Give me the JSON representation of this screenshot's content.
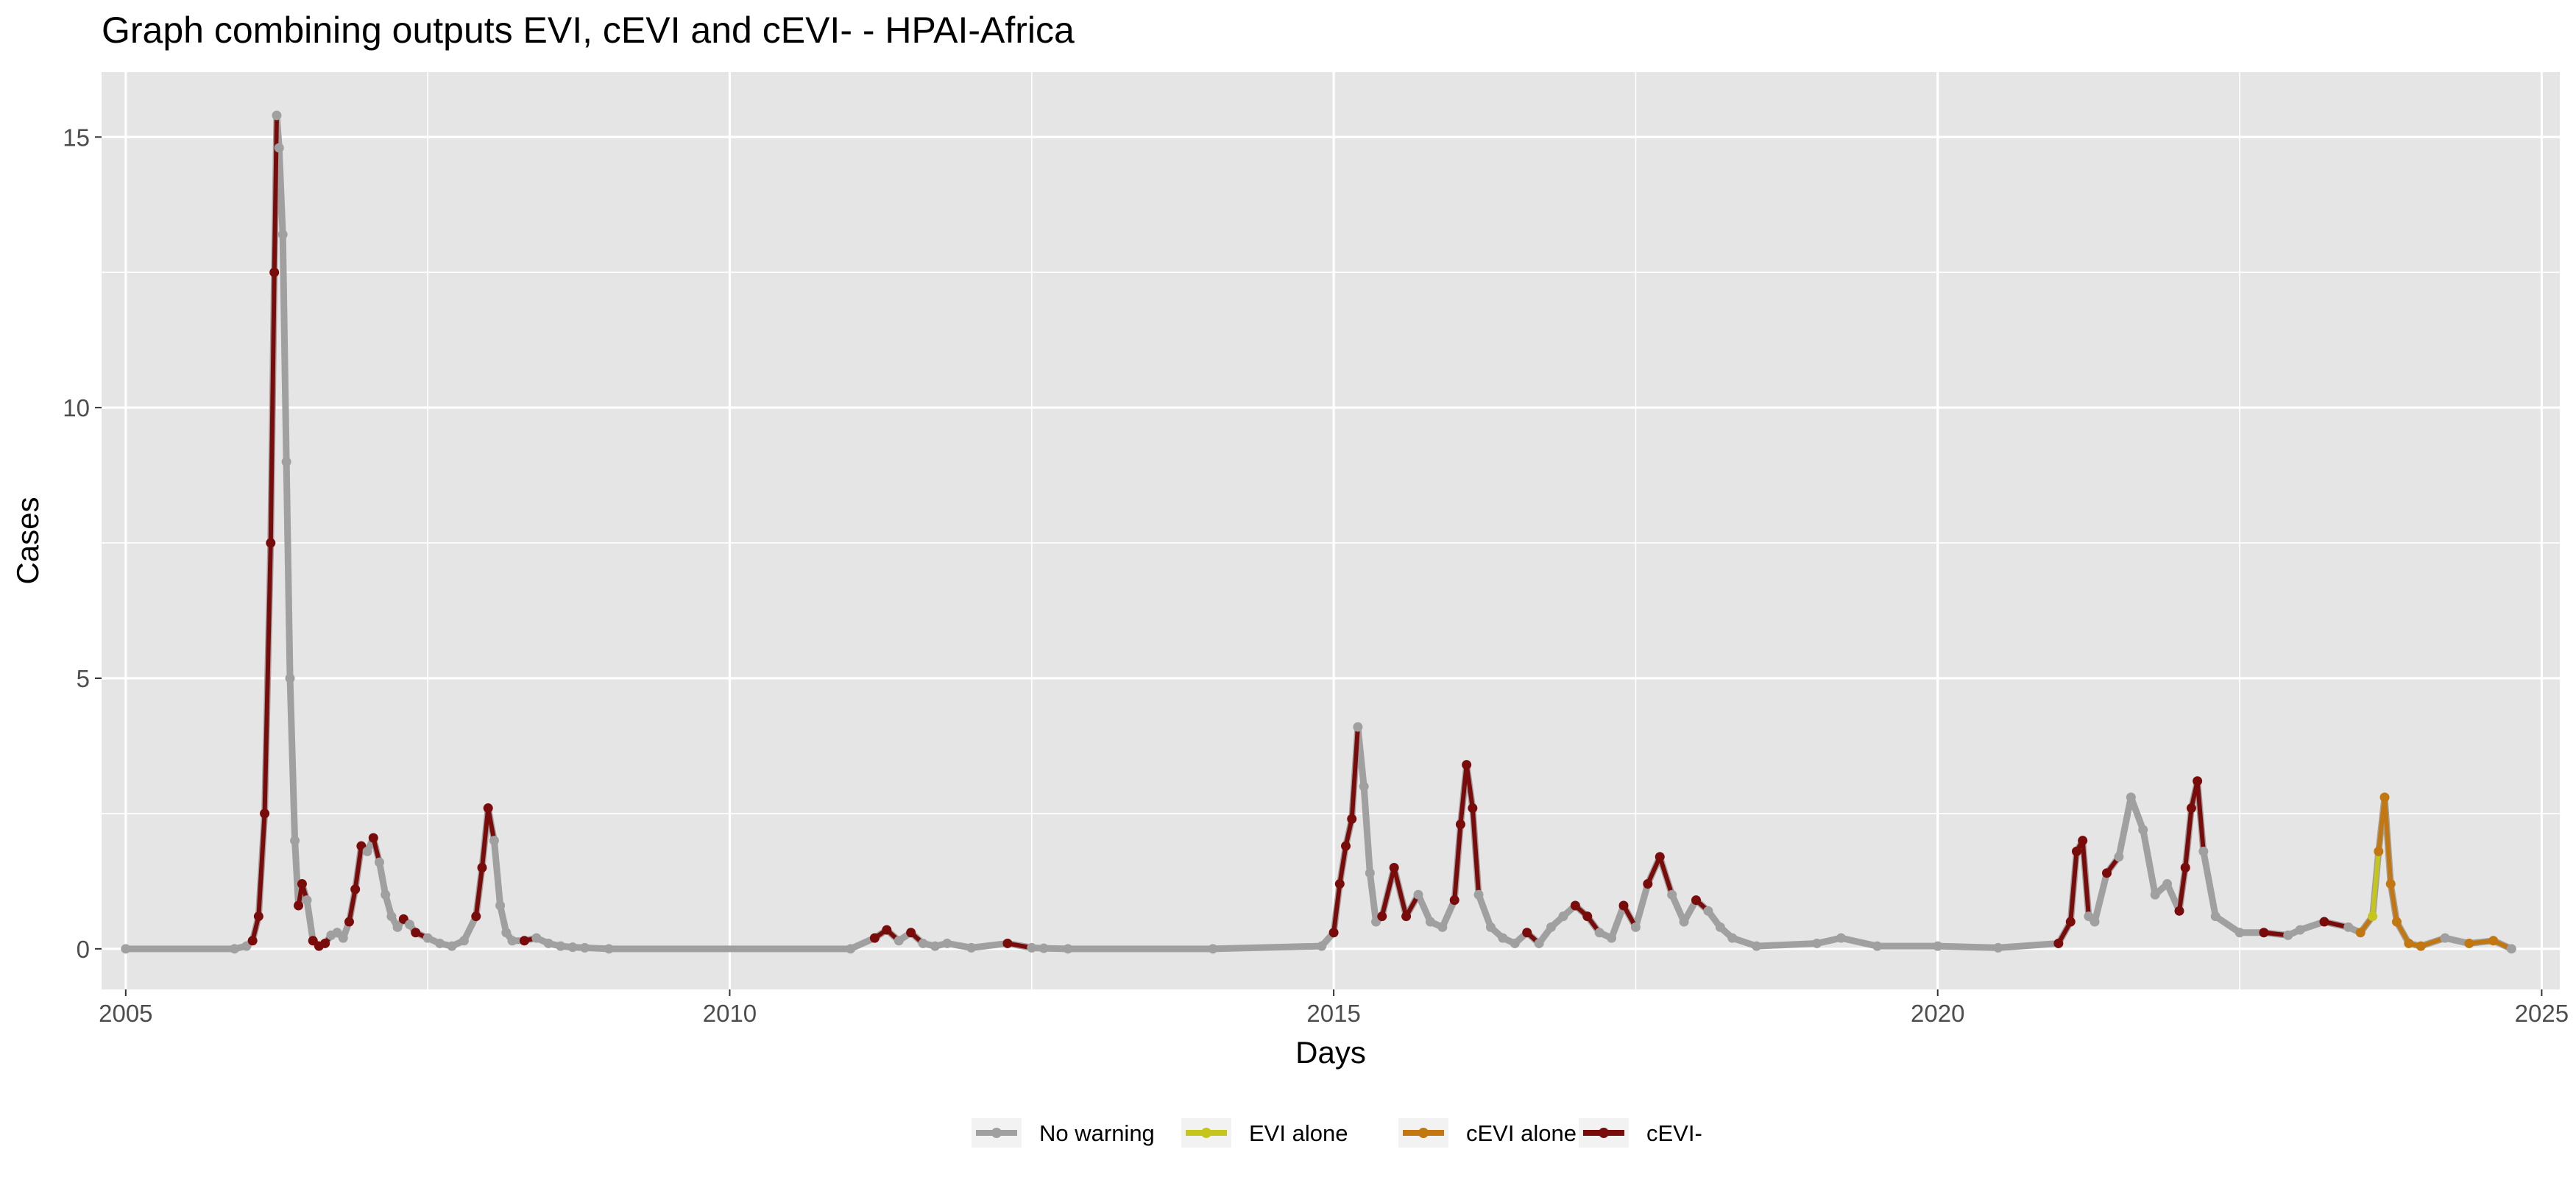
{
  "chart_data": {
    "type": "line",
    "title": "Graph combining outputs EVI, cEVI and cEVI- - HPAI-Africa",
    "xlabel": "Days",
    "ylabel": "Cases",
    "xlim": [
      2004.8,
      2025.15
    ],
    "ylim": [
      -0.75,
      16.2
    ],
    "x_ticks": [
      2005,
      2010,
      2015,
      2020,
      2025
    ],
    "y_ticks": [
      0,
      5,
      10,
      15
    ],
    "grid": true,
    "legend_position": "bottom",
    "series": [
      {
        "name": "No warning",
        "color": "#a0a0a0"
      },
      {
        "name": "EVI alone",
        "color": "#c5c51b"
      },
      {
        "name": "cEVI alone",
        "color": "#c27710"
      },
      {
        "name": "cEVI-",
        "color": "#7a0b0b"
      }
    ],
    "x": [
      2005.0,
      2005.9,
      2006.0,
      2006.05,
      2006.1,
      2006.15,
      2006.2,
      2006.23,
      2006.25,
      2006.27,
      2006.3,
      2006.33,
      2006.36,
      2006.4,
      2006.43,
      2006.46,
      2006.5,
      2006.55,
      2006.6,
      2006.65,
      2006.7,
      2006.75,
      2006.8,
      2006.85,
      2006.9,
      2006.95,
      2007.0,
      2007.05,
      2007.1,
      2007.15,
      2007.2,
      2007.25,
      2007.3,
      2007.35,
      2007.4,
      2007.5,
      2007.6,
      2007.7,
      2007.8,
      2007.9,
      2007.95,
      2008.0,
      2008.05,
      2008.1,
      2008.15,
      2008.2,
      2008.3,
      2008.4,
      2008.5,
      2008.6,
      2008.7,
      2008.8,
      2009.0,
      2011.0,
      2011.2,
      2011.3,
      2011.4,
      2011.5,
      2011.6,
      2011.7,
      2011.8,
      2012.0,
      2012.3,
      2012.5,
      2012.6,
      2012.8,
      2014.0,
      2014.9,
      2015.0,
      2015.05,
      2015.1,
      2015.15,
      2015.2,
      2015.25,
      2015.3,
      2015.35,
      2015.4,
      2015.5,
      2015.6,
      2015.7,
      2015.8,
      2015.9,
      2016.0,
      2016.05,
      2016.1,
      2016.15,
      2016.2,
      2016.3,
      2016.4,
      2016.5,
      2016.6,
      2016.7,
      2016.8,
      2016.9,
      2017.0,
      2017.1,
      2017.2,
      2017.3,
      2017.4,
      2017.5,
      2017.6,
      2017.7,
      2017.8,
      2017.9,
      2018.0,
      2018.1,
      2018.2,
      2018.3,
      2018.5,
      2019.0,
      2019.2,
      2019.5,
      2020.0,
      2020.5,
      2021.0,
      2021.1,
      2021.15,
      2021.2,
      2021.25,
      2021.3,
      2021.4,
      2021.5,
      2021.6,
      2021.7,
      2021.8,
      2021.9,
      2022.0,
      2022.05,
      2022.1,
      2022.15,
      2022.2,
      2022.3,
      2022.5,
      2022.7,
      2022.9,
      2023.0,
      2023.2,
      2023.4,
      2023.5,
      2023.6,
      2023.65,
      2023.7,
      2023.75,
      2023.8,
      2023.9,
      2024.0,
      2024.2,
      2024.4,
      2024.6,
      2024.75
    ],
    "y": [
      0.0,
      0.0,
      0.05,
      0.15,
      0.6,
      2.5,
      7.5,
      12.5,
      15.4,
      14.8,
      13.2,
      9.0,
      5.0,
      2.0,
      0.8,
      1.2,
      0.9,
      0.15,
      0.05,
      0.1,
      0.25,
      0.3,
      0.2,
      0.5,
      1.1,
      1.9,
      1.8,
      2.05,
      1.6,
      1.0,
      0.6,
      0.4,
      0.55,
      0.45,
      0.3,
      0.2,
      0.1,
      0.05,
      0.15,
      0.6,
      1.5,
      2.6,
      2.0,
      0.8,
      0.3,
      0.15,
      0.15,
      0.2,
      0.1,
      0.05,
      0.03,
      0.02,
      0.0,
      0.0,
      0.2,
      0.35,
      0.15,
      0.3,
      0.1,
      0.05,
      0.1,
      0.02,
      0.1,
      0.02,
      0.01,
      0.0,
      0.0,
      0.05,
      0.3,
      1.2,
      1.9,
      2.4,
      4.1,
      3.0,
      1.4,
      0.5,
      0.6,
      1.5,
      0.6,
      1.0,
      0.5,
      0.4,
      0.9,
      2.3,
      3.4,
      2.6,
      1.0,
      0.4,
      0.2,
      0.1,
      0.3,
      0.1,
      0.4,
      0.6,
      0.8,
      0.6,
      0.3,
      0.2,
      0.8,
      0.4,
      1.2,
      1.7,
      1.0,
      0.5,
      0.9,
      0.7,
      0.4,
      0.2,
      0.05,
      0.1,
      0.2,
      0.05,
      0.05,
      0.02,
      0.1,
      0.5,
      1.8,
      2.0,
      0.6,
      0.5,
      1.4,
      1.7,
      2.8,
      2.2,
      1.0,
      1.2,
      0.7,
      1.5,
      2.6,
      3.1,
      1.8,
      0.6,
      0.3,
      0.3,
      0.25,
      0.35,
      0.5,
      0.4,
      0.3,
      0.6,
      1.8,
      2.8,
      1.2,
      0.5,
      0.1,
      0.05,
      0.2,
      0.1,
      0.15,
      0.0
    ],
    "status": [
      "No warning",
      "No warning",
      "No warning",
      "cEVI-",
      "cEVI-",
      "cEVI-",
      "cEVI-",
      "cEVI-",
      "No warning",
      "No warning",
      "No warning",
      "No warning",
      "No warning",
      "No warning",
      "cEVI-",
      "cEVI-",
      "No warning",
      "cEVI-",
      "cEVI-",
      "cEVI-",
      "No warning",
      "No warning",
      "No warning",
      "cEVI-",
      "cEVI-",
      "cEVI-",
      "No warning",
      "cEVI-",
      "No warning",
      "No warning",
      "No warning",
      "No warning",
      "cEVI-",
      "No warning",
      "cEVI-",
      "No warning",
      "No warning",
      "No warning",
      "No warning",
      "cEVI-",
      "cEVI-",
      "cEVI-",
      "No warning",
      "No warning",
      "No warning",
      "No warning",
      "cEVI-",
      "No warning",
      "No warning",
      "No warning",
      "No warning",
      "No warning",
      "No warning",
      "No warning",
      "cEVI-",
      "cEVI-",
      "No warning",
      "cEVI-",
      "No warning",
      "No warning",
      "No warning",
      "No warning",
      "cEVI-",
      "No warning",
      "No warning",
      "No warning",
      "No warning",
      "No warning",
      "cEVI-",
      "cEVI-",
      "cEVI-",
      "cEVI-",
      "No warning",
      "No warning",
      "No warning",
      "No warning",
      "cEVI-",
      "cEVI-",
      "cEVI-",
      "No warning",
      "No warning",
      "No warning",
      "cEVI-",
      "cEVI-",
      "cEVI-",
      "cEVI-",
      "No warning",
      "No warning",
      "No warning",
      "No warning",
      "cEVI-",
      "No warning",
      "No warning",
      "No warning",
      "cEVI-",
      "cEVI-",
      "No warning",
      "No warning",
      "cEVI-",
      "No warning",
      "cEVI-",
      "cEVI-",
      "No warning",
      "No warning",
      "cEVI-",
      "No warning",
      "No warning",
      "No warning",
      "No warning",
      "No warning",
      "No warning",
      "No warning",
      "No warning",
      "No warning",
      "cEVI-",
      "cEVI-",
      "cEVI-",
      "cEVI-",
      "No warning",
      "No warning",
      "cEVI-",
      "No warning",
      "No warning",
      "No warning",
      "No warning",
      "No warning",
      "cEVI-",
      "cEVI-",
      "cEVI-",
      "cEVI-",
      "No warning",
      "No warning",
      "No warning",
      "cEVI-",
      "No warning",
      "No warning",
      "cEVI-",
      "No warning",
      "cEVI alone",
      "EVI alone",
      "cEVI alone",
      "cEVI alone",
      "cEVI alone",
      "cEVI alone",
      "cEVI alone",
      "cEVI alone",
      "No warning",
      "cEVI alone",
      "cEVI alone",
      "No warning"
    ]
  }
}
